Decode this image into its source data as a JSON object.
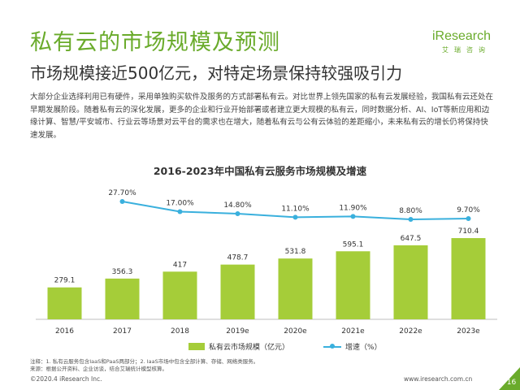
{
  "header": {
    "title": "私有云的市场规模及预测",
    "subtitle": "市场规模接近500亿元，对特定场景保持较强吸引力"
  },
  "logo": {
    "word": "iResearch",
    "sub": "艾瑞咨询"
  },
  "body": {
    "paragraph": "大部分企业选择利用已有硬件，采用单独购买软件及服务的方式部署私有云。对比世界上领先国家的私有云发展经验，我国私有云还处在早期发展阶段。随着私有云的深化发展，更多的企业和行业开始部署或者建立更大规模的私有云，同时数据分析、AI、IoT等新应用和边缘计算、智慧/平安城市、行业云等场景对云平台的需求也在增大，随着私有云与公有云体验的差距缩小，未来私有云的增长仍将保持快速发展。"
  },
  "chart_data": {
    "type": "bar",
    "title": "2016-2023年中国私有云服务市场规模及增速",
    "categories": [
      "2016",
      "2017",
      "2018",
      "2019e",
      "2020e",
      "2021e",
      "2022e",
      "2023e"
    ],
    "series": [
      {
        "name": "私有云市场规模（亿元）",
        "type": "bar",
        "values": [
          279.1,
          356.3,
          417,
          478.7,
          531.8,
          595.1,
          647.5,
          710.4
        ],
        "labels": [
          "279.1",
          "356.3",
          "417",
          "478.7",
          "531.8",
          "595.1",
          "647.5",
          "710.4"
        ]
      },
      {
        "name": "增速（%）",
        "type": "line",
        "values": [
          null,
          27.7,
          17.0,
          14.8,
          11.1,
          11.9,
          8.8,
          9.7
        ],
        "labels": [
          "",
          "27.70%",
          "17.00%",
          "14.80%",
          "11.10%",
          "11.90%",
          "8.80%",
          "9.70%"
        ]
      }
    ],
    "colors": {
      "bar": "#a5cd39",
      "line": "#3ab0dd"
    },
    "legend_position": "bottom",
    "grid": false
  },
  "notes": {
    "line1": "注释：1. 私有云服务包含IaaS和PaaS两部分；2. IaaS市场中包含全部计算、存储、网络类服务。",
    "line2": "来源：根据公开资料、企业访谈，结合艾瑞统计模型核算。"
  },
  "footer": {
    "copyright": "©2020.4 iResearch Inc.",
    "url": "www.iresearch.com.cn",
    "page": "16"
  },
  "colors": {
    "accent": "#6aab2b",
    "corner": "#6aab2b"
  }
}
